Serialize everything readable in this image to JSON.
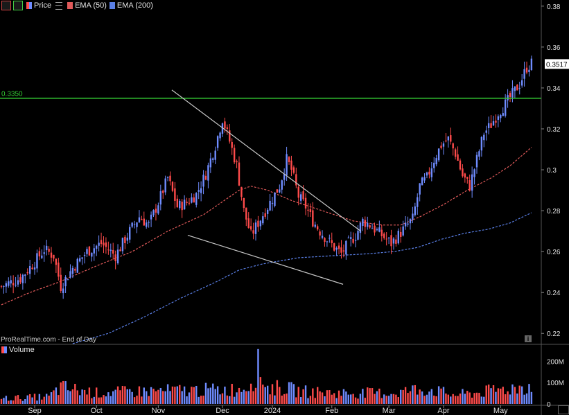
{
  "legend": {
    "price_label": "Price",
    "ema50_label": "EMA (50)",
    "ema200_label": "EMA (200)",
    "volume_label": "Volume"
  },
  "footer": "ProRealTime.com - End of Day",
  "colors": {
    "background": "#000000",
    "up": "#6f8cff",
    "down": "#ff4b4b",
    "ema50": "#e05a5a",
    "ema200": "#5a7fe6",
    "resistance": "#33cc33",
    "trendline": "#c8c8c8",
    "last_price_bg": "#ffffff"
  },
  "chart_data": [
    {
      "type": "candlestick",
      "title": "",
      "x_labels": [
        "Sep",
        "Oct",
        "Nov",
        "Dec",
        "2024",
        "Feb",
        "Mar",
        "Apr",
        "May"
      ],
      "y_ticks": [
        0.22,
        0.24,
        0.26,
        0.28,
        0.3,
        0.32,
        0.34,
        0.36,
        0.38
      ],
      "y_tick_labels": [
        "0.22",
        "0.24",
        "0.26",
        "0.28",
        "0.3",
        "0.32",
        "0.34",
        "0.36",
        "0.38"
      ],
      "ylim": [
        0.215,
        0.383
      ],
      "resistance_level": 0.335,
      "resistance_label": "0.3350",
      "last_price": 0.3517,
      "last_price_label": "0.3517",
      "close_anchors": [
        [
          0,
          0.243
        ],
        [
          8,
          0.247
        ],
        [
          14,
          0.255
        ],
        [
          18,
          0.261
        ],
        [
          22,
          0.258
        ],
        [
          25,
          0.243
        ],
        [
          30,
          0.252
        ],
        [
          36,
          0.26
        ],
        [
          42,
          0.264
        ],
        [
          48,
          0.258
        ],
        [
          54,
          0.27
        ],
        [
          58,
          0.277
        ],
        [
          62,
          0.273
        ],
        [
          66,
          0.284
        ],
        [
          70,
          0.296
        ],
        [
          74,
          0.282
        ],
        [
          78,
          0.284
        ],
        [
          82,
          0.288
        ],
        [
          86,
          0.298
        ],
        [
          90,
          0.312
        ],
        [
          93,
          0.325
        ],
        [
          96,
          0.314
        ],
        [
          99,
          0.302
        ],
        [
          102,
          0.28
        ],
        [
          105,
          0.268
        ],
        [
          108,
          0.274
        ],
        [
          111,
          0.28
        ],
        [
          114,
          0.286
        ],
        [
          117,
          0.292
        ],
        [
          120,
          0.305
        ],
        [
          122,
          0.3
        ],
        [
          125,
          0.287
        ],
        [
          128,
          0.282
        ],
        [
          131,
          0.275
        ],
        [
          134,
          0.27
        ],
        [
          137,
          0.266
        ],
        [
          140,
          0.262
        ],
        [
          143,
          0.259
        ],
        [
          146,
          0.264
        ],
        [
          149,
          0.268
        ],
        [
          152,
          0.275
        ],
        [
          155,
          0.273
        ],
        [
          158,
          0.27
        ],
        [
          161,
          0.267
        ],
        [
          164,
          0.264
        ],
        [
          167,
          0.268
        ],
        [
          170,
          0.272
        ],
        [
          173,
          0.276
        ],
        [
          176,
          0.292
        ],
        [
          179,
          0.296
        ],
        [
          182,
          0.305
        ],
        [
          185,
          0.312
        ],
        [
          188,
          0.315
        ],
        [
          191,
          0.308
        ],
        [
          194,
          0.297
        ],
        [
          197,
          0.292
        ],
        [
          200,
          0.305
        ],
        [
          203,
          0.318
        ],
        [
          206,
          0.322
        ],
        [
          209,
          0.328
        ],
        [
          212,
          0.332
        ],
        [
          215,
          0.337
        ],
        [
          218,
          0.342
        ],
        [
          221,
          0.35
        ],
        [
          223,
          0.352
        ]
      ],
      "series": [
        {
          "name": "EMA (50)",
          "anchors": [
            [
              0,
              0.234
            ],
            [
              12,
              0.24
            ],
            [
              24,
              0.245
            ],
            [
              40,
              0.253
            ],
            [
              55,
              0.26
            ],
            [
              70,
              0.27
            ],
            [
              85,
              0.278
            ],
            [
              100,
              0.29
            ],
            [
              105,
              0.292
            ],
            [
              112,
              0.29
            ],
            [
              122,
              0.285
            ],
            [
              135,
              0.28
            ],
            [
              148,
              0.275
            ],
            [
              160,
              0.273
            ],
            [
              168,
              0.273
            ],
            [
              176,
              0.277
            ],
            [
              186,
              0.283
            ],
            [
              196,
              0.29
            ],
            [
              206,
              0.296
            ],
            [
              214,
              0.302
            ],
            [
              223,
              0.311
            ]
          ]
        },
        {
          "name": "EMA (200)",
          "anchors": [
            [
              30,
              0.215
            ],
            [
              45,
              0.22
            ],
            [
              60,
              0.228
            ],
            [
              75,
              0.237
            ],
            [
              90,
              0.245
            ],
            [
              100,
              0.251
            ],
            [
              110,
              0.254
            ],
            [
              125,
              0.257
            ],
            [
              140,
              0.258
            ],
            [
              155,
              0.259
            ],
            [
              165,
              0.26
            ],
            [
              175,
              0.262
            ],
            [
              185,
              0.266
            ],
            [
              195,
              0.269
            ],
            [
              205,
              0.271
            ],
            [
              214,
              0.274
            ],
            [
              223,
              0.279
            ]
          ]
        }
      ],
      "trendlines": [
        {
          "from": [
            0.302,
            0.339
          ],
          "to": [
            0.634,
            0.27
          ]
        },
        {
          "from": [
            0.33,
            0.268
          ],
          "to": [
            0.603,
            0.244
          ]
        }
      ],
      "volume": {
        "y_ticks": [
          0,
          100,
          200
        ],
        "y_tick_labels": [
          "0",
          "100M",
          "200M"
        ],
        "ylim": [
          0,
          230
        ],
        "anchors": [
          [
            0,
            30
          ],
          [
            20,
            40
          ],
          [
            25,
            90
          ],
          [
            40,
            60
          ],
          [
            60,
            70
          ],
          [
            80,
            75
          ],
          [
            100,
            80
          ],
          [
            105,
            120
          ],
          [
            108,
            200
          ],
          [
            112,
            90
          ],
          [
            120,
            85
          ],
          [
            125,
            70
          ],
          [
            140,
            60
          ],
          [
            150,
            60
          ],
          [
            165,
            60
          ],
          [
            175,
            80
          ],
          [
            180,
            80
          ],
          [
            190,
            50
          ],
          [
            200,
            60
          ],
          [
            210,
            80
          ],
          [
            223,
            100
          ]
        ]
      }
    }
  ]
}
